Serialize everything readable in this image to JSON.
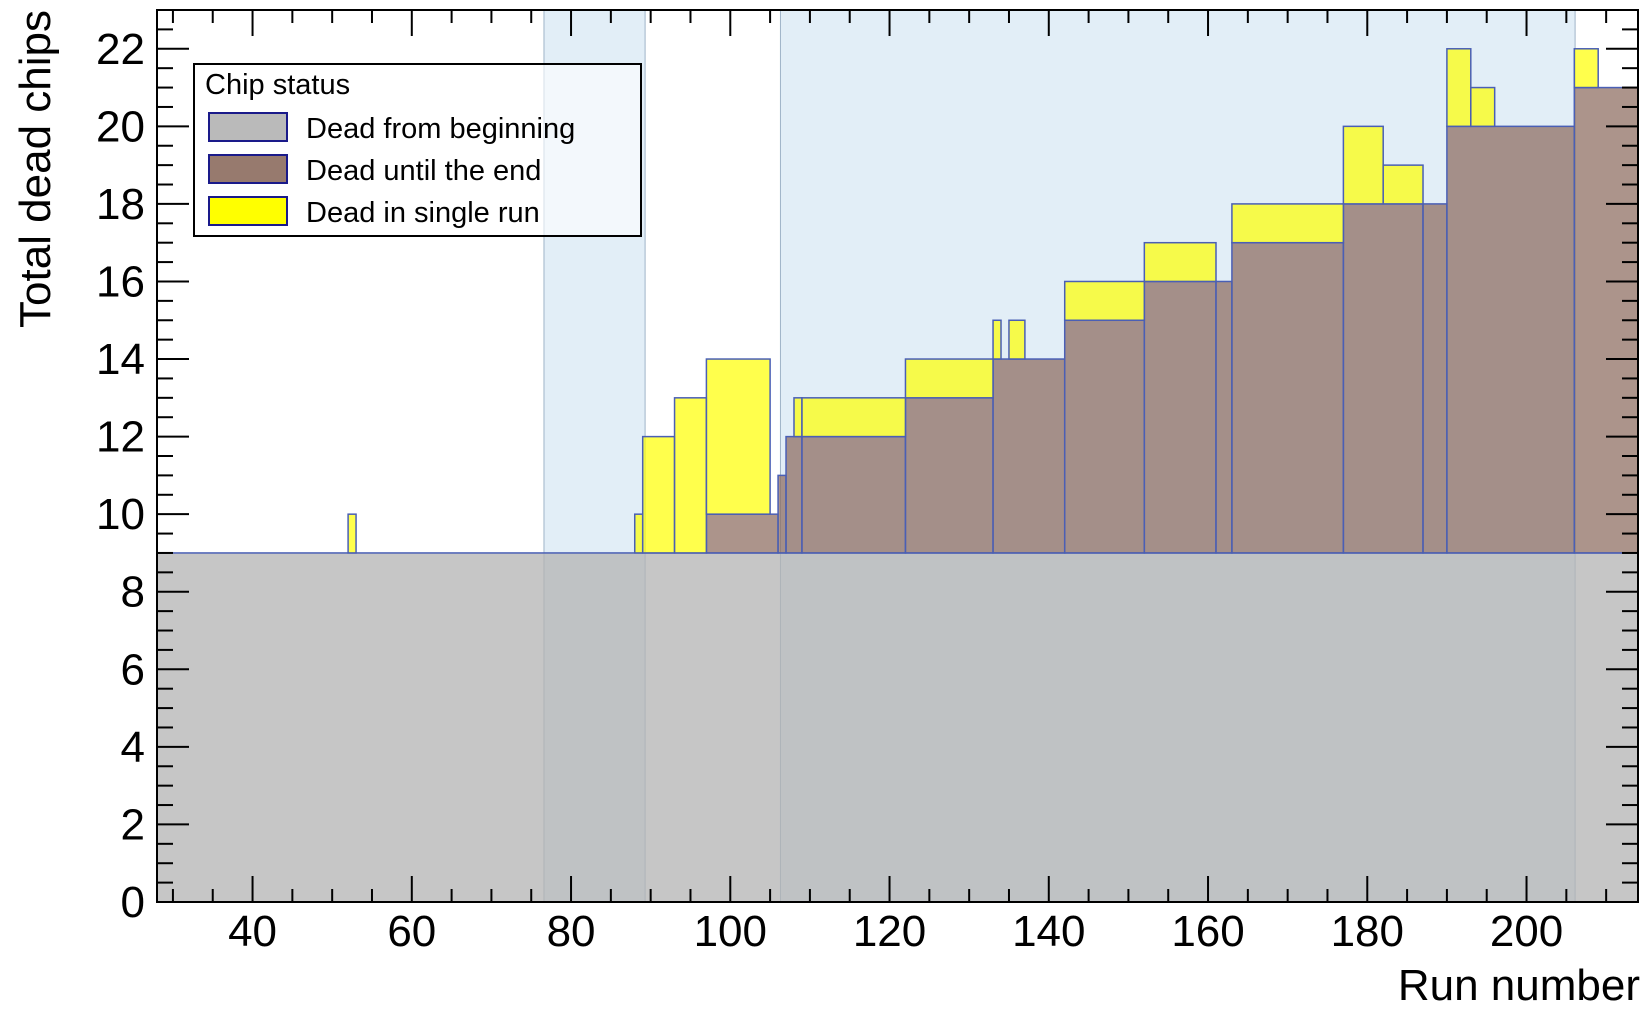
{
  "chart_data": {
    "type": "histogram-stacked",
    "title": "",
    "xlabel": "Run number",
    "ylabel": "Total dead chips",
    "xlim": [
      28,
      214
    ],
    "ylim": [
      0,
      23
    ],
    "x_ticks": [
      40,
      60,
      80,
      100,
      120,
      140,
      160,
      180,
      200
    ],
    "y_ticks": [
      0,
      2,
      4,
      6,
      8,
      10,
      12,
      14,
      16,
      18,
      20,
      22
    ],
    "shaded_run_ranges": [
      [
        76.6,
        89.3
      ],
      [
        106.3,
        206.1
      ]
    ],
    "legend": {
      "title": "Chip status",
      "placement": "top-left",
      "entries": [
        {
          "label": "Dead from beginning",
          "color": "#b3b3b3"
        },
        {
          "label": "Dead until the end",
          "color": "#8c6b5e"
        },
        {
          "label": "Dead in single run",
          "color": "#ffff00"
        }
      ]
    },
    "series": [
      {
        "name": "Dead from beginning",
        "color": "#b3b3b3",
        "bins": [
          [
            28,
            214,
            9
          ]
        ]
      },
      {
        "name": "Dead until the end",
        "color": "#8c6b5e",
        "bins": [
          [
            97,
            106,
            1
          ],
          [
            106,
            107,
            2
          ],
          [
            107,
            109,
            3
          ],
          [
            109,
            122,
            3
          ],
          [
            122,
            133,
            4
          ],
          [
            133,
            142,
            5
          ],
          [
            142,
            152,
            6
          ],
          [
            152,
            161,
            7
          ],
          [
            161,
            163,
            7
          ],
          [
            163,
            177,
            8
          ],
          [
            177,
            187,
            9
          ],
          [
            187,
            190,
            9
          ],
          [
            190,
            206,
            11
          ],
          [
            206,
            214,
            12
          ]
        ]
      },
      {
        "name": "Dead in single run",
        "color": "#ffff00",
        "bins": [
          [
            52,
            53,
            1
          ],
          [
            88,
            89,
            1
          ],
          [
            89,
            93,
            3
          ],
          [
            93,
            97,
            4
          ],
          [
            97,
            105,
            4
          ],
          [
            108,
            109,
            1
          ],
          [
            109,
            122,
            1
          ],
          [
            122,
            133,
            1
          ],
          [
            133,
            134,
            1
          ],
          [
            135,
            137,
            1
          ],
          [
            142,
            152,
            1
          ],
          [
            152,
            161,
            1
          ],
          [
            163,
            177,
            1
          ],
          [
            177,
            182,
            2
          ],
          [
            182,
            187,
            1
          ],
          [
            190,
            193,
            2
          ],
          [
            193,
            196,
            1
          ],
          [
            206,
            209,
            1
          ]
        ]
      }
    ]
  }
}
